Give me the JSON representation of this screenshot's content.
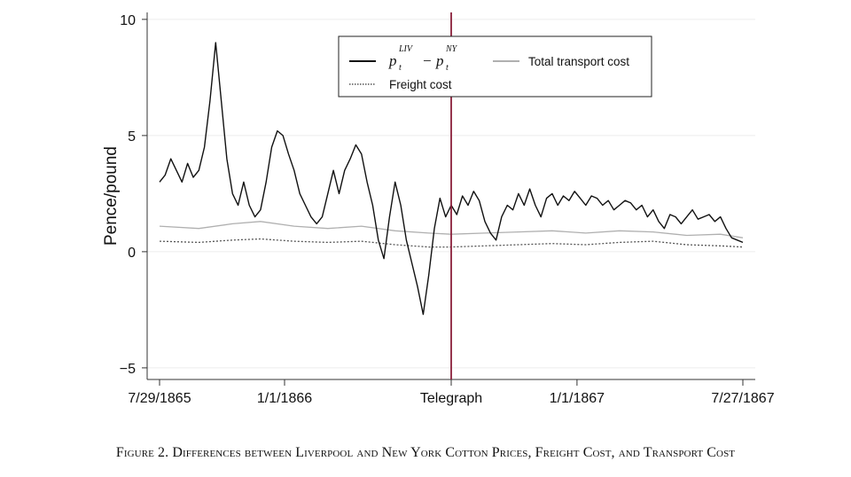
{
  "figure": {
    "caption": "Figure 2. Differences between Liverpool and New York Cotton Prices, Freight Cost, and Transport Cost"
  },
  "chart_data": {
    "type": "line",
    "title": "",
    "ylabel": "Pence/pound",
    "xlabel": "",
    "ylim": [
      -5.5,
      10.3
    ],
    "xlim": [
      "1865-07-29",
      "1867-07-27"
    ],
    "yticks": [
      10,
      5,
      0,
      -5
    ],
    "ytick_labels": [
      "10",
      "5",
      "0",
      "−5"
    ],
    "xticks": [
      "1865-07-29",
      "1866-01-01",
      "1866-07-28",
      "1867-01-01",
      "1867-07-27"
    ],
    "xtick_labels": [
      "7/29/1865",
      "1/1/1866",
      "Telegraph",
      "1/1/1867",
      "7/27/1867"
    ],
    "event_line": {
      "date": "1866-07-28",
      "label": "Telegraph",
      "color": "#8b1f3a"
    },
    "grid": "horizontal",
    "legend": {
      "placement": "top-center",
      "items": [
        {
          "key": "price_diff",
          "label_base": "p",
          "sup1": "LIV",
          "sub1": "t",
          "operator": "−",
          "sup2": "NY",
          "sub2": "t"
        },
        {
          "key": "transport",
          "label": "Total transport cost"
        },
        {
          "key": "freight",
          "label": "Freight cost"
        }
      ]
    },
    "series": [
      {
        "key": "price_diff",
        "color": "#111111",
        "style": "solid",
        "points": [
          [
            "1865-07-29",
            3.0
          ],
          [
            "1865-08-05",
            3.3
          ],
          [
            "1865-08-12",
            4.0
          ],
          [
            "1865-08-19",
            3.5
          ],
          [
            "1865-08-26",
            3.0
          ],
          [
            "1865-09-02",
            3.8
          ],
          [
            "1865-09-09",
            3.2
          ],
          [
            "1865-09-16",
            3.5
          ],
          [
            "1865-09-23",
            4.5
          ],
          [
            "1865-09-30",
            6.5
          ],
          [
            "1865-10-07",
            9.0
          ],
          [
            "1865-10-14",
            6.5
          ],
          [
            "1865-10-21",
            4.0
          ],
          [
            "1865-10-28",
            2.5
          ],
          [
            "1865-11-04",
            2.0
          ],
          [
            "1865-11-11",
            3.0
          ],
          [
            "1865-11-18",
            2.0
          ],
          [
            "1865-11-25",
            1.5
          ],
          [
            "1865-12-02",
            1.8
          ],
          [
            "1865-12-09",
            3.0
          ],
          [
            "1865-12-16",
            4.5
          ],
          [
            "1865-12-23",
            5.2
          ],
          [
            "1865-12-30",
            5.0
          ],
          [
            "1866-01-06",
            4.2
          ],
          [
            "1866-01-13",
            3.5
          ],
          [
            "1866-01-20",
            2.5
          ],
          [
            "1866-01-27",
            2.0
          ],
          [
            "1866-02-03",
            1.5
          ],
          [
            "1866-02-10",
            1.2
          ],
          [
            "1866-02-17",
            1.5
          ],
          [
            "1866-02-24",
            2.5
          ],
          [
            "1866-03-03",
            3.5
          ],
          [
            "1866-03-10",
            2.5
          ],
          [
            "1866-03-17",
            3.5
          ],
          [
            "1866-03-24",
            4.0
          ],
          [
            "1866-03-31",
            4.6
          ],
          [
            "1866-04-07",
            4.2
          ],
          [
            "1866-04-14",
            3.0
          ],
          [
            "1866-04-21",
            2.0
          ],
          [
            "1866-04-28",
            0.5
          ],
          [
            "1866-05-05",
            -0.3
          ],
          [
            "1866-05-12",
            1.5
          ],
          [
            "1866-05-19",
            3.0
          ],
          [
            "1866-05-26",
            2.0
          ],
          [
            "1866-06-02",
            0.5
          ],
          [
            "1866-06-09",
            -0.5
          ],
          [
            "1866-06-16",
            -1.5
          ],
          [
            "1866-06-23",
            -2.7
          ],
          [
            "1866-06-30",
            -1.0
          ],
          [
            "1866-07-07",
            1.0
          ],
          [
            "1866-07-14",
            2.3
          ],
          [
            "1866-07-21",
            1.5
          ],
          [
            "1866-07-28",
            2.0
          ],
          [
            "1866-08-04",
            1.6
          ],
          [
            "1866-08-11",
            2.4
          ],
          [
            "1866-08-18",
            2.0
          ],
          [
            "1866-08-25",
            2.6
          ],
          [
            "1866-09-01",
            2.2
          ],
          [
            "1866-09-08",
            1.3
          ],
          [
            "1866-09-15",
            0.8
          ],
          [
            "1866-09-22",
            0.5
          ],
          [
            "1866-09-29",
            1.5
          ],
          [
            "1866-10-06",
            2.0
          ],
          [
            "1866-10-13",
            1.8
          ],
          [
            "1866-10-20",
            2.5
          ],
          [
            "1866-10-27",
            2.0
          ],
          [
            "1866-11-03",
            2.7
          ],
          [
            "1866-11-10",
            2.0
          ],
          [
            "1866-11-17",
            1.5
          ],
          [
            "1866-11-24",
            2.3
          ],
          [
            "1866-12-01",
            2.5
          ],
          [
            "1866-12-08",
            2.0
          ],
          [
            "1866-12-15",
            2.4
          ],
          [
            "1866-12-22",
            2.2
          ],
          [
            "1866-12-29",
            2.6
          ],
          [
            "1867-01-05",
            2.3
          ],
          [
            "1867-01-12",
            2.0
          ],
          [
            "1867-01-19",
            2.4
          ],
          [
            "1867-01-26",
            2.3
          ],
          [
            "1867-02-02",
            2.0
          ],
          [
            "1867-02-09",
            2.2
          ],
          [
            "1867-02-16",
            1.8
          ],
          [
            "1867-02-23",
            2.0
          ],
          [
            "1867-03-02",
            2.2
          ],
          [
            "1867-03-09",
            2.1
          ],
          [
            "1867-03-16",
            1.8
          ],
          [
            "1867-03-23",
            2.0
          ],
          [
            "1867-03-30",
            1.5
          ],
          [
            "1867-04-06",
            1.8
          ],
          [
            "1867-04-13",
            1.3
          ],
          [
            "1867-04-20",
            1.0
          ],
          [
            "1867-04-27",
            1.6
          ],
          [
            "1867-05-04",
            1.5
          ],
          [
            "1867-05-11",
            1.2
          ],
          [
            "1867-05-18",
            1.5
          ],
          [
            "1867-05-25",
            1.8
          ],
          [
            "1867-06-01",
            1.4
          ],
          [
            "1867-06-08",
            1.5
          ],
          [
            "1867-06-15",
            1.6
          ],
          [
            "1867-06-22",
            1.3
          ],
          [
            "1867-06-29",
            1.5
          ],
          [
            "1867-07-06",
            1.0
          ],
          [
            "1867-07-13",
            0.6
          ],
          [
            "1867-07-20",
            0.5
          ],
          [
            "1867-07-27",
            0.4
          ]
        ]
      },
      {
        "key": "transport",
        "color": "#b0b0b0",
        "style": "solid",
        "points": [
          [
            "1865-07-29",
            1.1
          ],
          [
            "1865-09-16",
            1.0
          ],
          [
            "1865-10-28",
            1.2
          ],
          [
            "1865-12-02",
            1.3
          ],
          [
            "1866-01-13",
            1.1
          ],
          [
            "1866-02-24",
            1.0
          ],
          [
            "1866-04-07",
            1.1
          ],
          [
            "1866-05-19",
            0.9
          ],
          [
            "1866-06-30",
            0.8
          ],
          [
            "1866-07-28",
            0.75
          ],
          [
            "1866-09-08",
            0.8
          ],
          [
            "1866-10-20",
            0.85
          ],
          [
            "1866-12-01",
            0.9
          ],
          [
            "1867-01-12",
            0.8
          ],
          [
            "1867-02-23",
            0.9
          ],
          [
            "1867-04-06",
            0.85
          ],
          [
            "1867-05-18",
            0.7
          ],
          [
            "1867-06-29",
            0.75
          ],
          [
            "1867-07-27",
            0.6
          ]
        ]
      },
      {
        "key": "freight",
        "color": "#555555",
        "style": "dotted",
        "points": [
          [
            "1865-07-29",
            0.45
          ],
          [
            "1865-09-16",
            0.4
          ],
          [
            "1865-10-28",
            0.5
          ],
          [
            "1865-12-02",
            0.55
          ],
          [
            "1866-01-13",
            0.45
          ],
          [
            "1866-02-24",
            0.4
          ],
          [
            "1866-04-07",
            0.45
          ],
          [
            "1866-05-19",
            0.3
          ],
          [
            "1866-06-30",
            0.2
          ],
          [
            "1866-07-28",
            0.2
          ],
          [
            "1866-09-08",
            0.25
          ],
          [
            "1866-10-20",
            0.3
          ],
          [
            "1866-12-01",
            0.35
          ],
          [
            "1867-01-12",
            0.3
          ],
          [
            "1867-02-23",
            0.4
          ],
          [
            "1867-04-06",
            0.45
          ],
          [
            "1867-05-18",
            0.3
          ],
          [
            "1867-06-29",
            0.25
          ],
          [
            "1867-07-27",
            0.2
          ]
        ]
      }
    ]
  }
}
